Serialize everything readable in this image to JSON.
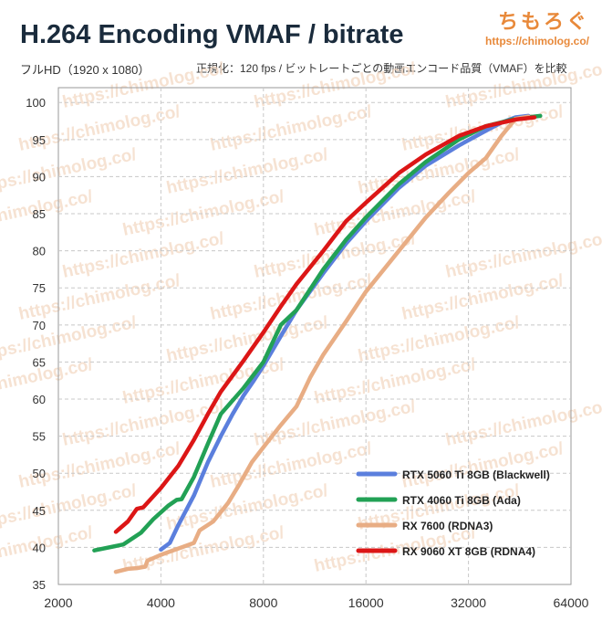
{
  "header": {
    "title": "H.264 Encoding VMAF / bitrate",
    "subtitle_left": "フルHD（1920 x 1080）",
    "subtitle_right": "正規化：120 fps / ビットレートごとの動画エンコード品質（VMAF）を比較",
    "brand_name": "ちもろぐ",
    "brand_url": "https://chimolog.co/"
  },
  "watermark": "https://chimolog.co/",
  "colors": {
    "grid": "#c8c8c8",
    "axis_text": "#333333"
  },
  "chart_data": {
    "type": "line",
    "title": "H.264 Encoding VMAF / bitrate",
    "xscale": "log2",
    "xlim": [
      2000,
      64000
    ],
    "ylim": [
      35,
      102
    ],
    "x_ticks": [
      2000,
      4000,
      8000,
      16000,
      32000,
      64000
    ],
    "x_tick_labels": [
      "2000",
      "4000",
      "8000",
      "16000",
      "32000",
      "64000"
    ],
    "y_ticks": [
      35,
      40,
      45,
      50,
      55,
      60,
      65,
      70,
      75,
      80,
      85,
      90,
      95,
      100
    ],
    "y_tick_labels": [
      "35",
      "40",
      "45",
      "50",
      "55",
      "60",
      "65",
      "70",
      "75",
      "80",
      "85",
      "90",
      "95",
      "100"
    ],
    "legend_position": "bottom-right",
    "series": [
      {
        "name": "RTX 5060 Ti 8GB (Blackwell)",
        "color": "#5b7fdd",
        "points": [
          [
            4000,
            39.7
          ],
          [
            4250,
            40.6
          ],
          [
            4500,
            43
          ],
          [
            5000,
            47
          ],
          [
            5500,
            51.5
          ],
          [
            6000,
            55
          ],
          [
            6500,
            58
          ],
          [
            7000,
            60.5
          ],
          [
            7500,
            62.5
          ],
          [
            8000,
            64.5
          ],
          [
            9000,
            68.5
          ],
          [
            10000,
            72
          ],
          [
            12000,
            77
          ],
          [
            14000,
            81
          ],
          [
            16000,
            84
          ],
          [
            20000,
            88.5
          ],
          [
            24000,
            91.5
          ],
          [
            30000,
            94.2
          ],
          [
            36000,
            96.2
          ],
          [
            40000,
            97.3
          ],
          [
            44000,
            98
          ],
          [
            48000,
            98.2
          ]
        ]
      },
      {
        "name": "RTX 4060 Ti 8GB (Ada)",
        "color": "#22a155",
        "points": [
          [
            2550,
            39.6
          ],
          [
            3100,
            40.4
          ],
          [
            3500,
            42
          ],
          [
            3800,
            43.8
          ],
          [
            4200,
            45.6
          ],
          [
            4450,
            46.4
          ],
          [
            4600,
            46.5
          ],
          [
            5000,
            49.5
          ],
          [
            5500,
            54
          ],
          [
            6000,
            58
          ],
          [
            7000,
            61.5
          ],
          [
            8000,
            65
          ],
          [
            9000,
            70
          ],
          [
            10000,
            72
          ],
          [
            12000,
            77.5
          ],
          [
            14000,
            81.5
          ],
          [
            16000,
            84.5
          ],
          [
            20000,
            89
          ],
          [
            24000,
            92
          ],
          [
            30000,
            95
          ],
          [
            36000,
            96.8
          ],
          [
            44000,
            97.8
          ],
          [
            52000,
            98.2
          ]
        ]
      },
      {
        "name": "RX 7600 (RDNA3)",
        "color": "#e8ad84",
        "points": [
          [
            2950,
            36.7
          ],
          [
            3200,
            37.1
          ],
          [
            3400,
            37.2
          ],
          [
            3600,
            37.4
          ],
          [
            3650,
            38.2
          ],
          [
            4000,
            39
          ],
          [
            4600,
            40
          ],
          [
            5000,
            40.6
          ],
          [
            5200,
            42.3
          ],
          [
            5700,
            43.5
          ],
          [
            6300,
            46
          ],
          [
            6800,
            48.5
          ],
          [
            7400,
            51.5
          ],
          [
            8000,
            53.5
          ],
          [
            9000,
            56.5
          ],
          [
            10000,
            59
          ],
          [
            11000,
            63
          ],
          [
            12000,
            66
          ],
          [
            14000,
            70.5
          ],
          [
            16000,
            74.5
          ],
          [
            20000,
            80
          ],
          [
            24000,
            84.5
          ],
          [
            28000,
            87.8
          ],
          [
            32000,
            90.5
          ],
          [
            36000,
            92.5
          ],
          [
            40000,
            95.5
          ],
          [
            44000,
            97.8
          ],
          [
            48000,
            98.1
          ]
        ]
      },
      {
        "name": "RX 9060 XT 8GB (RDNA4)",
        "color": "#dc1616",
        "points": [
          [
            2950,
            42.1
          ],
          [
            3200,
            43.5
          ],
          [
            3400,
            45.2
          ],
          [
            3550,
            45.4
          ],
          [
            4000,
            48
          ],
          [
            4500,
            51
          ],
          [
            5000,
            54.5
          ],
          [
            5500,
            58
          ],
          [
            6000,
            61
          ],
          [
            7000,
            65.2
          ],
          [
            8000,
            69
          ],
          [
            9000,
            72.5
          ],
          [
            10000,
            75.5
          ],
          [
            12000,
            80
          ],
          [
            14000,
            84
          ],
          [
            16000,
            86.5
          ],
          [
            20000,
            90.5
          ],
          [
            24000,
            93
          ],
          [
            30000,
            95.5
          ],
          [
            36000,
            96.8
          ],
          [
            44000,
            97.7
          ],
          [
            50000,
            98
          ]
        ]
      }
    ]
  }
}
